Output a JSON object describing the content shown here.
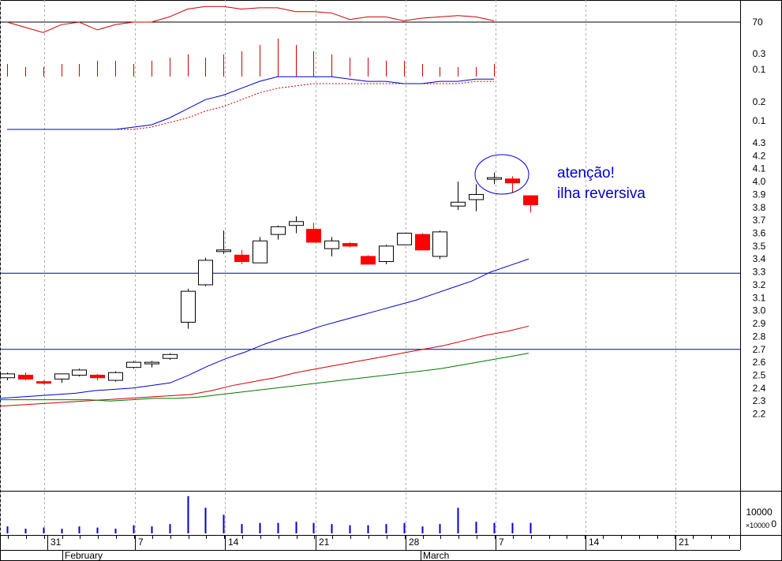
{
  "chart_data": {
    "type": "candlestick",
    "colors": {
      "up_candle": "#000000",
      "down_candle": "#ff0000",
      "ma_fast": "#0000cc",
      "ma_mid": "#cc0000",
      "ma_slow": "#007700",
      "hline": "#0000aa",
      "annotation": "#0000cc",
      "grid": "#b0b0b0"
    },
    "annotation_lines": [
      "atenção!",
      "ilha reversiva"
    ],
    "rsi_panel": {
      "ticks": [
        "70"
      ],
      "level_line": 70,
      "values": [
        70,
        68,
        66,
        69,
        70,
        67,
        69,
        70,
        70,
        72,
        75,
        76,
        76,
        75,
        75.5,
        75.5,
        74,
        74,
        73.5,
        71,
        72,
        72,
        70.5,
        71.5,
        72,
        72.5,
        72,
        70.5
      ]
    },
    "histogram_panel": {
      "ticks": [
        "0.3",
        "0.1"
      ],
      "values": [
        0.2,
        0.15,
        0.15,
        0.2,
        0.2,
        0.25,
        0.25,
        0.2,
        0.25,
        0.3,
        0.35,
        0.3,
        0.35,
        0.4,
        0.5,
        0.6,
        0.5,
        0.4,
        0.35,
        0.3,
        0.3,
        0.25,
        0.25,
        0.2,
        0.15,
        0.15,
        0.15,
        0.2
      ]
    },
    "oscillator_panel": {
      "ticks": [
        "0.2",
        "0.1"
      ],
      "line": [
        0.05,
        0.05,
        0.05,
        0.05,
        0.05,
        0.05,
        0.05,
        0.06,
        0.07,
        0.1,
        0.14,
        0.18,
        0.2,
        0.23,
        0.26,
        0.28,
        0.28,
        0.28,
        0.28,
        0.27,
        0.26,
        0.26,
        0.25,
        0.25,
        0.26,
        0.26,
        0.27,
        0.27
      ],
      "signal": [
        0.05,
        0.05,
        0.05,
        0.05,
        0.05,
        0.05,
        0.05,
        0.05,
        0.06,
        0.08,
        0.1,
        0.13,
        0.15,
        0.18,
        0.21,
        0.23,
        0.24,
        0.25,
        0.25,
        0.25,
        0.25,
        0.25,
        0.25,
        0.25,
        0.25,
        0.25,
        0.26,
        0.26
      ]
    },
    "price_panel": {
      "ticks": [
        "4.3",
        "4.2",
        "4.1",
        "4.0",
        "3.9",
        "3.8",
        "3.7",
        "3.6",
        "3.5",
        "3.4",
        "3.3",
        "3.2",
        "3.1",
        "3.0",
        "2.9",
        "2.8",
        "2.7",
        "2.6",
        "2.5",
        "2.4",
        "2.3",
        "2.2"
      ],
      "hlines": [
        3.29,
        2.7
      ],
      "candles": [
        {
          "o": 2.48,
          "h": 2.52,
          "l": 2.46,
          "c": 2.51
        },
        {
          "o": 2.5,
          "h": 2.52,
          "l": 2.46,
          "c": 2.47
        },
        {
          "o": 2.45,
          "h": 2.46,
          "l": 2.43,
          "c": 2.44
        },
        {
          "o": 2.47,
          "h": 2.51,
          "l": 2.44,
          "c": 2.51
        },
        {
          "o": 2.5,
          "h": 2.55,
          "l": 2.49,
          "c": 2.54
        },
        {
          "o": 2.5,
          "h": 2.51,
          "l": 2.46,
          "c": 2.48
        },
        {
          "o": 2.46,
          "h": 2.53,
          "l": 2.45,
          "c": 2.52
        },
        {
          "o": 2.56,
          "h": 2.61,
          "l": 2.55,
          "c": 2.6
        },
        {
          "o": 2.59,
          "h": 2.61,
          "l": 2.56,
          "c": 2.6
        },
        {
          "o": 2.63,
          "h": 2.67,
          "l": 2.62,
          "c": 2.66
        },
        {
          "o": 2.91,
          "h": 3.17,
          "l": 2.86,
          "c": 3.15
        },
        {
          "o": 3.2,
          "h": 3.41,
          "l": 3.19,
          "c": 3.39
        },
        {
          "o": 3.47,
          "h": 3.62,
          "l": 3.44,
          "c": 3.47
        },
        {
          "o": 3.43,
          "h": 3.47,
          "l": 3.36,
          "c": 3.38
        },
        {
          "o": 3.37,
          "h": 3.57,
          "l": 3.37,
          "c": 3.54
        },
        {
          "o": 3.59,
          "h": 3.66,
          "l": 3.55,
          "c": 3.65
        },
        {
          "o": 3.66,
          "h": 3.73,
          "l": 3.6,
          "c": 3.69
        },
        {
          "o": 3.63,
          "h": 3.68,
          "l": 3.53,
          "c": 3.53
        },
        {
          "o": 3.48,
          "h": 3.57,
          "l": 3.42,
          "c": 3.54
        },
        {
          "o": 3.52,
          "h": 3.53,
          "l": 3.49,
          "c": 3.5
        },
        {
          "o": 3.42,
          "h": 3.43,
          "l": 3.36,
          "c": 3.36
        },
        {
          "o": 3.38,
          "h": 3.51,
          "l": 3.36,
          "c": 3.5
        },
        {
          "o": 3.51,
          "h": 3.6,
          "l": 3.51,
          "c": 3.6
        },
        {
          "o": 3.59,
          "h": 3.6,
          "l": 3.47,
          "c": 3.47
        },
        {
          "o": 3.42,
          "h": 3.62,
          "l": 3.4,
          "c": 3.61
        },
        {
          "o": 3.81,
          "h": 4.0,
          "l": 3.78,
          "c": 3.84
        },
        {
          "o": 3.86,
          "h": 3.98,
          "l": 3.77,
          "c": 3.9
        },
        {
          "o": 4.03,
          "h": 4.07,
          "l": 3.98,
          "c": 4.03
        },
        {
          "o": 4.02,
          "h": 4.04,
          "l": 3.91,
          "c": 3.99
        },
        {
          "o": 3.89,
          "h": 3.89,
          "l": 3.76,
          "c": 3.82
        }
      ],
      "ma_fast": [
        2.32,
        2.33,
        2.34,
        2.35,
        2.36,
        2.38,
        2.39,
        2.4,
        2.42,
        2.44,
        2.5,
        2.57,
        2.63,
        2.68,
        2.74,
        2.79,
        2.83,
        2.88,
        2.92,
        2.96,
        3.0,
        3.04,
        3.08,
        3.13,
        3.18,
        3.23,
        3.3,
        3.35,
        3.4
      ],
      "ma_mid": [
        2.26,
        2.27,
        2.28,
        2.29,
        2.3,
        2.31,
        2.32,
        2.33,
        2.34,
        2.35,
        2.38,
        2.42,
        2.45,
        2.48,
        2.52,
        2.55,
        2.58,
        2.61,
        2.64,
        2.67,
        2.7,
        2.73,
        2.77,
        2.81,
        2.84,
        2.88
      ],
      "ma_slow": [
        2.31,
        2.31,
        2.31,
        2.31,
        2.31,
        2.3,
        2.31,
        2.32,
        2.32,
        2.33,
        2.35,
        2.37,
        2.39,
        2.41,
        2.43,
        2.45,
        2.47,
        2.49,
        2.51,
        2.53,
        2.55,
        2.58,
        2.61,
        2.64,
        2.67
      ]
    },
    "volume_panel": {
      "ticks": [
        "10000",
        "0"
      ],
      "unit_label": "×10000",
      "values": [
        3000,
        2000,
        2500,
        2000,
        3000,
        2500,
        2000,
        3500,
        3000,
        4000,
        16000,
        11000,
        8000,
        4000,
        4500,
        4500,
        5000,
        4500,
        4000,
        3500,
        3500,
        4000,
        4500,
        3000,
        4000,
        11000,
        5000,
        4500,
        4500,
        4500
      ]
    },
    "x_axis": {
      "day_ticks": [
        "31",
        "7",
        "14",
        "21",
        "28",
        "7",
        "14",
        "21"
      ],
      "month_labels": [
        "February",
        "March"
      ]
    }
  }
}
